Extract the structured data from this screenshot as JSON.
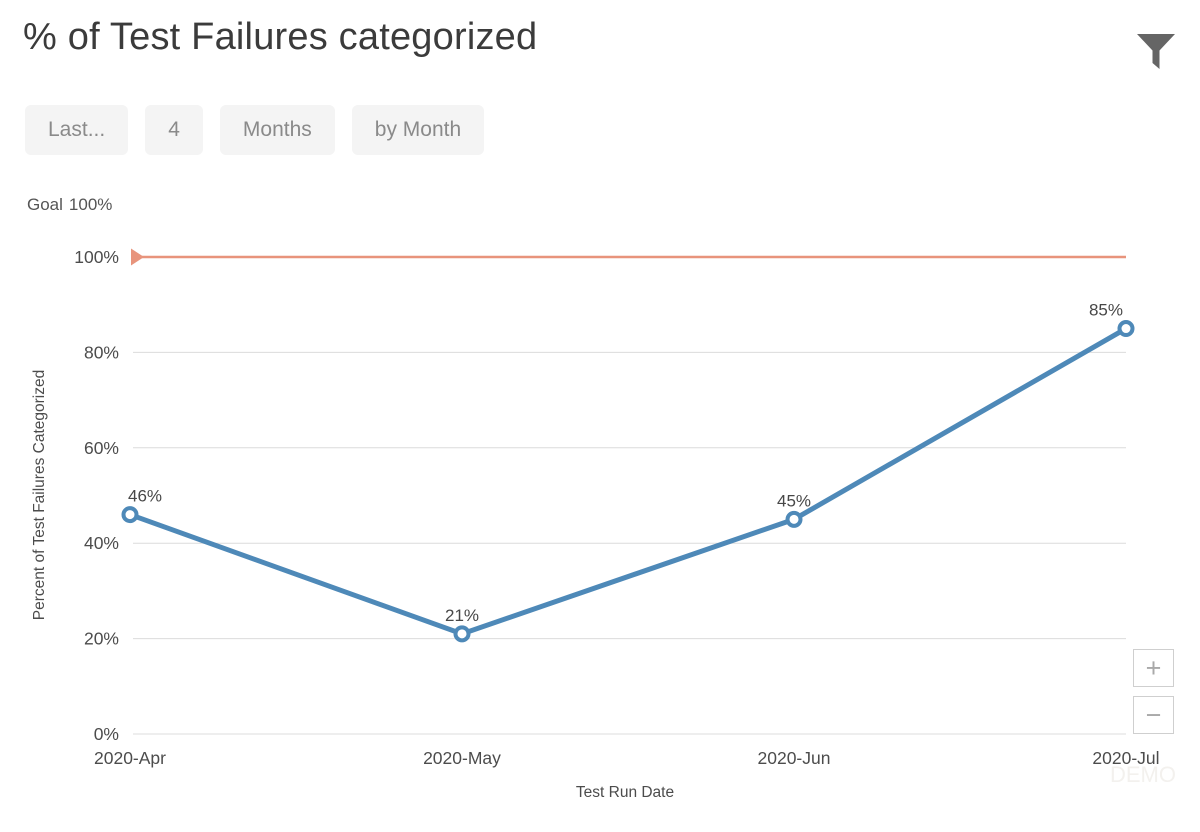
{
  "header": {
    "title": "% of Test Failures categorized"
  },
  "filters": {
    "chips": [
      {
        "label": "Last..."
      },
      {
        "label": "4"
      },
      {
        "label": "Months"
      },
      {
        "label": "by Month"
      }
    ]
  },
  "goal_row": {
    "label": "Goal",
    "value": "100%"
  },
  "chart_data": {
    "type": "line",
    "title": "% of Test Failures categorized",
    "x": [
      "2020-Apr",
      "2020-May",
      "2020-Jun",
      "2020-Jul"
    ],
    "values": [
      46,
      21,
      45,
      85
    ],
    "point_labels": [
      "46%",
      "21%",
      "45%",
      "85%"
    ],
    "xlabel": "Test Run Date",
    "ylabel": "Percent of Test Failures Categorized",
    "ylim": [
      0,
      100
    ],
    "yticks": [
      0,
      20,
      40,
      60,
      80,
      100
    ],
    "ytick_labels": [
      "0%",
      "20%",
      "40%",
      "60%",
      "80%",
      "100%"
    ],
    "goal": {
      "value": 100,
      "label": "100%"
    },
    "grid": true,
    "legend": "none",
    "line_color": "#4e89b8",
    "marker_fill": "#ffffff",
    "goal_color": "#e8947c",
    "grid_color": "#dcdcdc"
  },
  "zoom_controls": {
    "zoom_in": "+",
    "zoom_out": "−"
  },
  "watermark": "DEMO",
  "colors": {
    "accent_goal": "#e8947c",
    "series_blue": "#4e89b8",
    "chip_bg": "#f4f4f4"
  }
}
